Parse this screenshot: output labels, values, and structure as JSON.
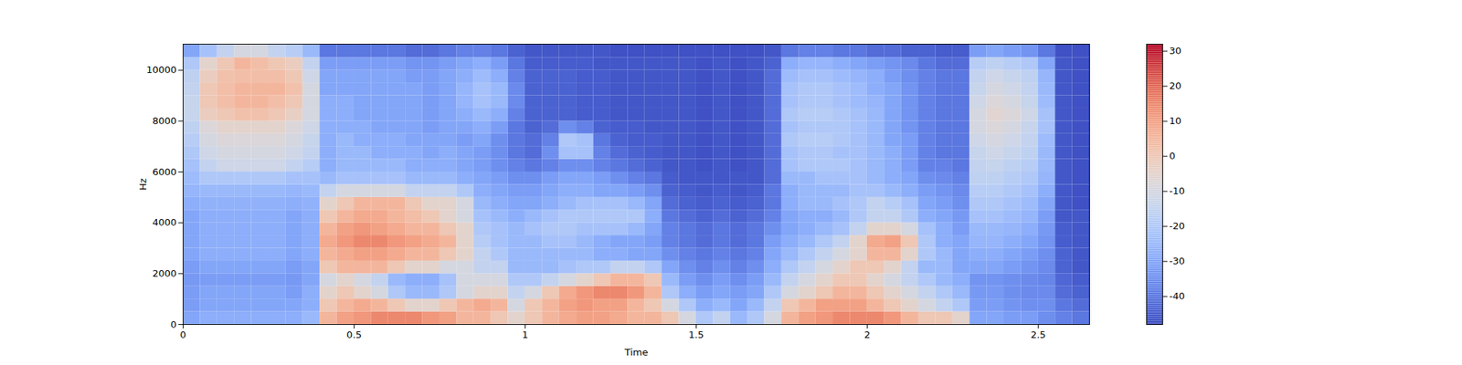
{
  "chart_data": {
    "type": "heatmap",
    "x_label": "Time",
    "y_label": "Hz",
    "color": "coolwarm",
    "xlim": [
      0,
      2.65
    ],
    "ylim": [
      0,
      11025
    ],
    "xticks": [
      0,
      0.5,
      1,
      1.5,
      2,
      2.5
    ],
    "yticks": [
      0,
      2000,
      4000,
      6000,
      8000,
      10000
    ],
    "colorbar": {
      "range": [
        -48,
        32
      ],
      "ticks": [
        -40,
        -30,
        -20,
        -10,
        0,
        10,
        20,
        30
      ]
    },
    "x": [
      0,
      0.05,
      0.1,
      0.15,
      0.2,
      0.25,
      0.3,
      0.35,
      0.4,
      0.45,
      0.5,
      0.55,
      0.6,
      0.65,
      0.7,
      0.75,
      0.8,
      0.85,
      0.9,
      0.95,
      1,
      1.05,
      1.1,
      1.15,
      1.2,
      1.25,
      1.3,
      1.35,
      1.4,
      1.45,
      1.5,
      1.55,
      1.6,
      1.65,
      1.7,
      1.75,
      1.8,
      1.85,
      1.9,
      1.95,
      2,
      2.05,
      2.1,
      2.15,
      2.2,
      2.25,
      2.3,
      2.35,
      2.4,
      2.45,
      2.5,
      2.55,
      2.6
    ],
    "y": [
      0,
      500,
      1000,
      1500,
      2000,
      2500,
      3000,
      3500,
      4000,
      4500,
      5000,
      5500,
      6000,
      6500,
      7000,
      7500,
      8000,
      8500,
      9000,
      9500,
      10000,
      10500
    ],
    "values": [
      [
        -30,
        -28,
        -28,
        -28,
        -28,
        -28,
        -28,
        -25,
        5,
        10,
        12,
        15,
        15,
        15,
        12,
        10,
        5,
        5,
        0,
        -5,
        0,
        5,
        8,
        10,
        10,
        8,
        5,
        5,
        0,
        -10,
        -20,
        -15,
        -25,
        -20,
        -10,
        5,
        10,
        12,
        15,
        15,
        15,
        12,
        5,
        0,
        0,
        -5,
        -30,
        -30,
        -32,
        -32,
        -35,
        -38,
        -40
      ],
      [
        -32,
        -30,
        -30,
        -30,
        -30,
        -30,
        -30,
        -28,
        0,
        5,
        8,
        5,
        0,
        -5,
        -5,
        0,
        5,
        8,
        5,
        -10,
        0,
        5,
        10,
        12,
        10,
        10,
        5,
        0,
        -10,
        -20,
        -28,
        -25,
        -30,
        -25,
        -15,
        0,
        5,
        10,
        10,
        10,
        5,
        0,
        -5,
        -10,
        -15,
        -20,
        -32,
        -32,
        -34,
        -35,
        -35,
        -40,
        -42
      ],
      [
        -32,
        -30,
        -30,
        -30,
        -30,
        -30,
        -32,
        -28,
        -5,
        0,
        -5,
        -10,
        -20,
        -25,
        -25,
        -20,
        -10,
        -5,
        -5,
        -15,
        -10,
        0,
        8,
        12,
        15,
        15,
        12,
        5,
        -20,
        -28,
        -32,
        -30,
        -32,
        -30,
        -20,
        -10,
        -5,
        0,
        5,
        5,
        0,
        -5,
        -10,
        -15,
        -20,
        -25,
        -33,
        -33,
        -35,
        -36,
        -36,
        -42,
        -44
      ],
      [
        -33,
        -32,
        -32,
        -32,
        -32,
        -32,
        -33,
        -30,
        -10,
        -5,
        -10,
        -15,
        -25,
        -28,
        -28,
        -22,
        -10,
        -10,
        -10,
        -20,
        -20,
        -15,
        -10,
        -5,
        0,
        5,
        5,
        0,
        -25,
        -32,
        -35,
        -32,
        -35,
        -32,
        -25,
        -15,
        -10,
        -5,
        0,
        0,
        -5,
        -10,
        -15,
        -20,
        -25,
        -28,
        -34,
        -34,
        -35,
        -36,
        -37,
        -43,
        -45
      ],
      [
        -32,
        -30,
        -30,
        -30,
        -30,
        -30,
        -32,
        -30,
        0,
        5,
        5,
        5,
        0,
        -5,
        -5,
        -10,
        -10,
        -15,
        -15,
        -25,
        -25,
        -25,
        -22,
        -20,
        -20,
        -15,
        -15,
        -20,
        -30,
        -35,
        -38,
        -35,
        -38,
        -35,
        -28,
        -20,
        -15,
        -10,
        -5,
        0,
        0,
        -5,
        -15,
        -25,
        -25,
        -30,
        -30,
        -30,
        -32,
        -34,
        -36,
        -44,
        -46
      ],
      [
        -30,
        -28,
        -28,
        -28,
        -28,
        -28,
        -30,
        -28,
        5,
        8,
        10,
        10,
        8,
        5,
        5,
        0,
        -5,
        -15,
        -20,
        -25,
        -25,
        -25,
        -25,
        -25,
        -28,
        -28,
        -30,
        -30,
        -35,
        -38,
        -40,
        -38,
        -40,
        -38,
        -30,
        -25,
        -20,
        -15,
        -10,
        -5,
        5,
        5,
        -5,
        -20,
        -25,
        -30,
        -28,
        -28,
        -30,
        -32,
        -35,
        -44,
        -46
      ],
      [
        -30,
        -28,
        -28,
        -28,
        -28,
        -28,
        -30,
        -28,
        8,
        12,
        15,
        15,
        12,
        10,
        8,
        5,
        -5,
        -18,
        -22,
        -25,
        -25,
        -22,
        -22,
        -25,
        -28,
        -30,
        -30,
        -32,
        -38,
        -40,
        -42,
        -40,
        -42,
        -40,
        -32,
        -28,
        -25,
        -20,
        -15,
        -5,
        8,
        10,
        0,
        -20,
        -28,
        -30,
        -26,
        -26,
        -28,
        -30,
        -34,
        -45,
        -46
      ],
      [
        -30,
        -28,
        -28,
        -28,
        -28,
        -28,
        -30,
        -28,
        5,
        10,
        12,
        10,
        8,
        5,
        5,
        0,
        -5,
        -20,
        -22,
        -25,
        -22,
        -20,
        -20,
        -22,
        -22,
        -22,
        -25,
        -30,
        -38,
        -40,
        -42,
        -40,
        -42,
        -40,
        -35,
        -30,
        -28,
        -25,
        -22,
        -15,
        -5,
        -5,
        -10,
        -22,
        -28,
        -32,
        -25,
        -25,
        -26,
        -28,
        -33,
        -45,
        -46
      ],
      [
        -30,
        -28,
        -28,
        -28,
        -28,
        -28,
        -30,
        -28,
        0,
        5,
        8,
        8,
        5,
        3,
        0,
        -5,
        -10,
        -22,
        -25,
        -28,
        -25,
        -22,
        -20,
        -20,
        -20,
        -20,
        -20,
        -28,
        -40,
        -42,
        -44,
        -42,
        -44,
        -42,
        -38,
        -30,
        -28,
        -28,
        -25,
        -20,
        -15,
        -15,
        -20,
        -28,
        -30,
        -33,
        -22,
        -22,
        -24,
        -26,
        -32,
        -46,
        -46
      ],
      [
        -28,
        -27,
        -27,
        -27,
        -27,
        -27,
        -28,
        -27,
        -5,
        0,
        5,
        5,
        5,
        0,
        -5,
        -5,
        -10,
        -25,
        -28,
        -30,
        -30,
        -28,
        -25,
        -22,
        -22,
        -22,
        -25,
        -30,
        -42,
        -44,
        -45,
        -44,
        -45,
        -44,
        -40,
        -28,
        -25,
        -25,
        -22,
        -20,
        -15,
        -18,
        -22,
        -30,
        -32,
        -35,
        -20,
        -20,
        -22,
        -24,
        -30,
        -46,
        -47
      ],
      [
        -26,
        -25,
        -25,
        -25,
        -25,
        -25,
        -26,
        -25,
        -15,
        -10,
        -10,
        -10,
        -10,
        -15,
        -15,
        -15,
        -20,
        -28,
        -30,
        -32,
        -32,
        -30,
        -28,
        -28,
        -30,
        -30,
        -32,
        -35,
        -44,
        -45,
        -46,
        -45,
        -46,
        -45,
        -40,
        -28,
        -25,
        -25,
        -25,
        -22,
        -22,
        -25,
        -28,
        -32,
        -34,
        -36,
        -18,
        -18,
        -20,
        -22,
        -28,
        -46,
        -47
      ],
      [
        -24,
        -20,
        -20,
        -20,
        -20,
        -20,
        -22,
        -22,
        -25,
        -22,
        -22,
        -22,
        -22,
        -25,
        -25,
        -25,
        -28,
        -30,
        -32,
        -35,
        -35,
        -32,
        -30,
        -30,
        -32,
        -35,
        -38,
        -40,
        -45,
        -46,
        -46,
        -46,
        -46,
        -46,
        -42,
        -25,
        -25,
        -22,
        -22,
        -22,
        -25,
        -28,
        -30,
        -35,
        -36,
        -38,
        -16,
        -16,
        -18,
        -20,
        -26,
        -46,
        -47
      ],
      [
        -22,
        -15,
        -12,
        -12,
        -12,
        -12,
        -15,
        -18,
        -28,
        -25,
        -25,
        -25,
        -25,
        -28,
        -28,
        -28,
        -30,
        -32,
        -35,
        -38,
        -40,
        -38,
        -35,
        -35,
        -38,
        -40,
        -42,
        -44,
        -46,
        -46,
        -47,
        -46,
        -47,
        -46,
        -42,
        -22,
        -20,
        -20,
        -20,
        -22,
        -25,
        -28,
        -32,
        -38,
        -38,
        -40,
        -15,
        -14,
        -16,
        -18,
        -25,
        -46,
        -47
      ],
      [
        -20,
        -12,
        -10,
        -10,
        -10,
        -10,
        -12,
        -15,
        -28,
        -25,
        -25,
        -28,
        -28,
        -28,
        -30,
        -28,
        -30,
        -32,
        -35,
        -40,
        -42,
        -35,
        -22,
        -22,
        -38,
        -42,
        -44,
        -45,
        -46,
        -46,
        -47,
        -46,
        -47,
        -46,
        -42,
        -22,
        -20,
        -20,
        -22,
        -22,
        -25,
        -28,
        -32,
        -38,
        -40,
        -40,
        -14,
        -12,
        -14,
        -16,
        -25,
        -46,
        -47
      ],
      [
        -18,
        -10,
        -8,
        -8,
        -8,
        -8,
        -10,
        -14,
        -28,
        -25,
        -28,
        -28,
        -28,
        -30,
        -30,
        -30,
        -32,
        -30,
        -35,
        -40,
        -42,
        -38,
        -20,
        -22,
        -40,
        -44,
        -45,
        -45,
        -46,
        -46,
        -47,
        -46,
        -47,
        -46,
        -42,
        -20,
        -18,
        -18,
        -20,
        -22,
        -25,
        -30,
        -32,
        -38,
        -40,
        -40,
        -12,
        -10,
        -12,
        -15,
        -24,
        -46,
        -47
      ],
      [
        -16,
        -8,
        -5,
        -5,
        -5,
        -5,
        -8,
        -12,
        -28,
        -28,
        -28,
        -30,
        -30,
        -30,
        -32,
        -30,
        -30,
        -28,
        -32,
        -40,
        -44,
        -42,
        -35,
        -38,
        -44,
        -45,
        -45,
        -46,
        -46,
        -46,
        -47,
        -46,
        -47,
        -46,
        -42,
        -22,
        -20,
        -20,
        -20,
        -22,
        -25,
        -30,
        -34,
        -38,
        -40,
        -40,
        -10,
        -8,
        -10,
        -14,
        -22,
        -46,
        -47
      ],
      [
        -14,
        -2,
        0,
        2,
        2,
        0,
        -3,
        -10,
        -28,
        -28,
        -30,
        -30,
        -30,
        -30,
        -32,
        -30,
        -28,
        -25,
        -28,
        -38,
        -44,
        -44,
        -44,
        -45,
        -45,
        -46,
        -46,
        -46,
        -46,
        -46,
        -47,
        -46,
        -47,
        -46,
        -42,
        -20,
        -18,
        -18,
        -20,
        -22,
        -25,
        -30,
        -34,
        -38,
        -40,
        -40,
        -10,
        -6,
        -8,
        -12,
        -22,
        -46,
        -47
      ],
      [
        -14,
        0,
        3,
        5,
        5,
        3,
        0,
        -10,
        -28,
        -28,
        -30,
        -30,
        -30,
        -30,
        -32,
        -30,
        -26,
        -22,
        -25,
        -36,
        -44,
        -44,
        -44,
        -45,
        -45,
        -46,
        -46,
        -46,
        -46,
        -46,
        -47,
        -46,
        -47,
        -46,
        -42,
        -22,
        -20,
        -20,
        -22,
        -24,
        -26,
        -30,
        -34,
        -38,
        -40,
        -40,
        -12,
        -8,
        -10,
        -14,
        -24,
        -46,
        -47
      ],
      [
        -15,
        0,
        3,
        5,
        5,
        5,
        2,
        -10,
        -30,
        -30,
        -30,
        -30,
        -30,
        -30,
        -32,
        -30,
        -26,
        -22,
        -25,
        -36,
        -44,
        -44,
        -44,
        -45,
        -45,
        -46,
        -46,
        -46,
        -46,
        -46,
        -47,
        -46,
        -47,
        -46,
        -42,
        -22,
        -20,
        -20,
        -22,
        -24,
        -28,
        -30,
        -34,
        -38,
        -40,
        -40,
        -14,
        -10,
        -12,
        -15,
        -25,
        -46,
        -47
      ],
      [
        -16,
        -2,
        2,
        3,
        3,
        3,
        0,
        -12,
        -30,
        -30,
        -30,
        -30,
        -30,
        -32,
        -32,
        -30,
        -28,
        -24,
        -28,
        -38,
        -44,
        -44,
        -44,
        -45,
        -45,
        -46,
        -46,
        -46,
        -46,
        -46,
        -47,
        -46,
        -47,
        -46,
        -42,
        -24,
        -22,
        -22,
        -24,
        -26,
        -28,
        -32,
        -35,
        -38,
        -40,
        -40,
        -15,
        -12,
        -14,
        -16,
        -26,
        -46,
        -47
      ],
      [
        -20,
        -5,
        0,
        5,
        3,
        0,
        -2,
        -15,
        -32,
        -32,
        -32,
        -32,
        -32,
        -34,
        -34,
        -32,
        -30,
        -28,
        -32,
        -40,
        -45,
        -45,
        -45,
        -45,
        -46,
        -46,
        -46,
        -46,
        -46,
        -46,
        -47,
        -46,
        -47,
        -46,
        -44,
        -28,
        -26,
        -26,
        -28,
        -30,
        -32,
        -34,
        -36,
        -40,
        -42,
        -42,
        -18,
        -16,
        -18,
        -20,
        -30,
        -46,
        -47
      ],
      [
        -30,
        -22,
        -15,
        -10,
        -10,
        -15,
        -18,
        -25,
        -40,
        -40,
        -40,
        -40,
        -40,
        -42,
        -42,
        -40,
        -38,
        -38,
        -40,
        -44,
        -46,
        -46,
        -46,
        -46,
        -46,
        -47,
        -47,
        -47,
        -47,
        -47,
        -47,
        -47,
        -47,
        -47,
        -46,
        -40,
        -38,
        -38,
        -40,
        -40,
        -42,
        -42,
        -44,
        -44,
        -45,
        -45,
        -32,
        -30,
        -32,
        -34,
        -40,
        -47,
        -47
      ]
    ]
  }
}
